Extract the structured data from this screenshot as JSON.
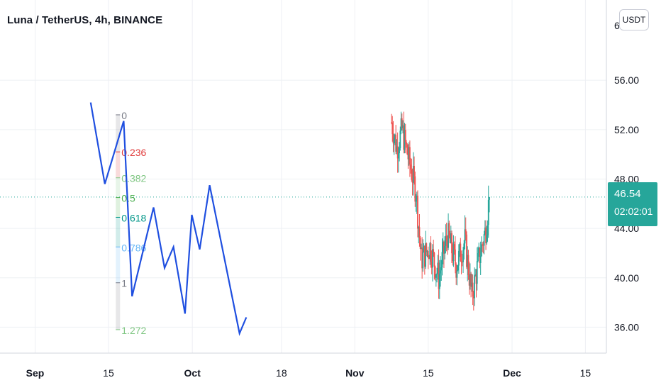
{
  "header": {
    "title": "Luna / TetherUS, 4h, BINANCE"
  },
  "toolbar": {
    "currency_label": "USDT"
  },
  "colors": {
    "up": "#26a69a",
    "down": "#ef5350",
    "wave": "#1f4fe0",
    "grid": "#eef0f4",
    "axis_text": "#131722",
    "last_price_line": "#26a69a"
  },
  "last_price": {
    "value": "46.54",
    "countdown": "02:02:01",
    "level": 46.54
  },
  "chart_data": {
    "type": "candlestick",
    "y_ticks": [
      "36.00",
      "40.00",
      "44.00",
      "48.00",
      "52.00",
      "56.00"
    ],
    "y_tick_values": [
      36,
      40,
      44,
      48,
      52,
      56
    ],
    "top_partial_tick": "6",
    "ylim": [
      33.9,
      62.5
    ],
    "x_ticks": [
      {
        "label": "Sep",
        "day": 0
      },
      {
        "label": "15",
        "day": 14
      },
      {
        "label": "Oct",
        "day": 30
      },
      {
        "label": "18",
        "day": 47
      },
      {
        "label": "Nov",
        "day": 61
      },
      {
        "label": "15",
        "day": 75
      },
      {
        "label": "Dec",
        "day": 91
      },
      {
        "label": "15",
        "day": 105
      }
    ],
    "xlim": [
      -6.7,
      109
    ],
    "fib_levels": [
      {
        "label": "0",
        "color": "#787b86",
        "value": 53.2
      },
      {
        "label": "0.236",
        "color": "#e03a3a",
        "value": 50.2
      },
      {
        "label": "0.382",
        "color": "#81c784",
        "value": 48.1
      },
      {
        "label": "0.5",
        "color": "#4caf50",
        "value": 46.5
      },
      {
        "label": "0.618",
        "color": "#009688",
        "value": 44.9
      },
      {
        "label": "0.786",
        "color": "#64b5f6",
        "value": 42.5
      },
      {
        "label": "1",
        "color": "#787b86",
        "value": 39.6
      },
      {
        "label": "1.272",
        "color": "#81c784",
        "value": 35.8
      }
    ],
    "wave_path": [
      [
        10.6,
        54.2
      ],
      [
        13.3,
        47.6
      ],
      [
        16.9,
        52.7
      ],
      [
        18.5,
        38.5
      ],
      [
        22.6,
        45.7
      ],
      [
        24.7,
        40.8
      ],
      [
        26.4,
        42.5
      ],
      [
        28.6,
        37.1
      ],
      [
        29.9,
        45.1
      ],
      [
        31.4,
        42.3
      ],
      [
        33.3,
        47.5
      ],
      [
        39.0,
        35.5
      ],
      [
        40.3,
        36.8
      ]
    ],
    "candles_start_day": 68,
    "candles_day_step": 0.1667,
    "candles_first_open": 52.6,
    "candles_last_close": 46.54
  }
}
